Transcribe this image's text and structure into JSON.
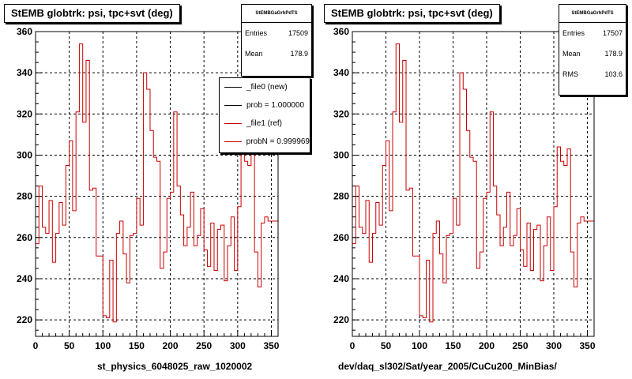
{
  "chart_data": [
    {
      "type": "line",
      "title": "StEMB globtrk: psi, tpc+svt (deg)",
      "xlabel": "st_physics_6048025_raw_1020002",
      "xlim": [
        0,
        360
      ],
      "ylim": [
        212,
        360
      ],
      "xticks": [
        0,
        50,
        100,
        150,
        200,
        250,
        300,
        350
      ],
      "yticks": [
        220,
        240,
        260,
        280,
        300,
        320,
        340,
        360
      ],
      "grid": true,
      "stats": {
        "name": "StEMBGaGrhPdTS",
        "rows": [
          {
            "label": "Entries",
            "value": "17509"
          },
          {
            "label": "Mean",
            "value": "178.9"
          }
        ]
      },
      "legend": [
        {
          "label": "_file0 (new)",
          "color": "#000000"
        },
        {
          "label": "prob = 1.000000",
          "color": "#000000"
        },
        {
          "label": "_file1 (ref)",
          "color": "#cc0000"
        },
        {
          "label": "probN = 0.999969",
          "color": "#cc0000"
        }
      ],
      "series": [
        {
          "color": "#cc0000",
          "x": [
            0,
            5,
            10,
            15,
            20,
            25,
            30,
            35,
            40,
            45,
            50,
            55,
            60,
            65,
            70,
            75,
            80,
            85,
            90,
            95,
            100,
            105,
            110,
            115,
            120,
            125,
            130,
            135,
            140,
            145,
            150,
            155,
            160,
            165,
            170,
            175,
            180,
            185,
            190,
            195,
            200,
            205,
            210,
            215,
            220,
            225,
            230,
            235,
            240,
            245,
            250,
            255,
            260,
            265,
            270,
            275,
            280,
            285,
            290,
            295,
            300,
            305,
            310,
            315,
            320,
            325,
            330,
            335,
            340,
            345,
            350,
            355
          ],
          "values": [
            257,
            285,
            265,
            262,
            278,
            248,
            262,
            277,
            266,
            295,
            307,
            273,
            321,
            354,
            316,
            346,
            283,
            284,
            251,
            251,
            222,
            221,
            249,
            219,
            262,
            268,
            252,
            238,
            261,
            262,
            279,
            266,
            340,
            332,
            312,
            299,
            297,
            245,
            253,
            279,
            282,
            321,
            285,
            271,
            256,
            265,
            282,
            256,
            261,
            274,
            254,
            246,
            267,
            244,
            264,
            266,
            239,
            256,
            270,
            244,
            275,
            304,
            297,
            295,
            303,
            253,
            236,
            267,
            270,
            268,
            268,
            268
          ]
        }
      ]
    },
    {
      "type": "line",
      "title": "StEMB globtrk: psi, tpc+svt (deg)",
      "xlabel": "dev/daq_sl302/Sat/year_2005/CuCu200_MinBias/",
      "xlim": [
        0,
        360
      ],
      "ylim": [
        212,
        360
      ],
      "xticks": [
        0,
        50,
        100,
        150,
        200,
        250,
        300,
        350
      ],
      "yticks": [
        220,
        240,
        260,
        280,
        300,
        320,
        340,
        360
      ],
      "grid": true,
      "stats": {
        "name": "StEMBGaGrhPdTS",
        "rows": [
          {
            "label": "Entries",
            "value": "17507"
          },
          {
            "label": "Mean",
            "value": "178.9"
          },
          {
            "label": "RMS",
            "value": "103.6"
          }
        ]
      },
      "legend": [],
      "series": [
        {
          "color": "#cc0000",
          "x": [
            0,
            5,
            10,
            15,
            20,
            25,
            30,
            35,
            40,
            45,
            50,
            55,
            60,
            65,
            70,
            75,
            80,
            85,
            90,
            95,
            100,
            105,
            110,
            115,
            120,
            125,
            130,
            135,
            140,
            145,
            150,
            155,
            160,
            165,
            170,
            175,
            180,
            185,
            190,
            195,
            200,
            205,
            210,
            215,
            220,
            225,
            230,
            235,
            240,
            245,
            250,
            255,
            260,
            265,
            270,
            275,
            280,
            285,
            290,
            295,
            300,
            305,
            310,
            315,
            320,
            325,
            330,
            335,
            340,
            345,
            350,
            355
          ],
          "values": [
            257,
            285,
            265,
            262,
            278,
            248,
            262,
            277,
            266,
            295,
            307,
            273,
            321,
            354,
            316,
            346,
            283,
            284,
            251,
            251,
            222,
            221,
            249,
            219,
            262,
            268,
            252,
            238,
            261,
            262,
            279,
            266,
            340,
            332,
            312,
            299,
            297,
            245,
            253,
            279,
            282,
            321,
            285,
            271,
            256,
            265,
            282,
            256,
            261,
            274,
            254,
            246,
            267,
            244,
            264,
            266,
            239,
            256,
            270,
            244,
            275,
            304,
            297,
            295,
            303,
            253,
            236,
            267,
            270,
            268,
            268,
            268
          ]
        }
      ]
    }
  ]
}
